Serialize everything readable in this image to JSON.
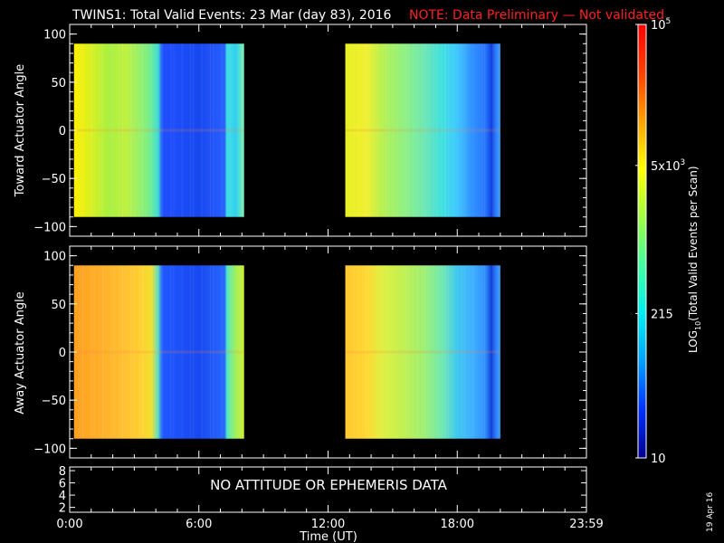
{
  "header": {
    "title": "TWINS1: Total Valid Events: 23 Mar (day  83), 2016",
    "note": "NOTE: Data Preliminary — Not validated",
    "note_color": "#ff2020"
  },
  "stamp": "19 Apr 16",
  "chart_data": [
    {
      "type": "heatmap",
      "ylabel": "Toward Actuator Angle",
      "ylim": [
        -110,
        110
      ],
      "yticks": [
        "100",
        "50",
        "0",
        "−50",
        "−100"
      ],
      "ytick_values": [
        100,
        50,
        0,
        -50,
        -100
      ],
      "ylim_data": [
        -90,
        90
      ],
      "xlim": [
        0,
        24
      ],
      "blocks": [
        {
          "x_start": 0.2,
          "x_end": 8.1,
          "stops": [
            [
              0.2,
              "#fff000"
            ],
            [
              1.0,
              "#d8f020"
            ],
            [
              1.8,
              "#a8f040"
            ],
            [
              2.6,
              "#c0f040"
            ],
            [
              3.6,
              "#80f080"
            ],
            [
              4.1,
              "#40e0d0"
            ],
            [
              4.3,
              "#2050ff"
            ],
            [
              6.0,
              "#1848f0"
            ],
            [
              7.2,
              "#2860ff"
            ],
            [
              7.3,
              "#40e0e0"
            ],
            [
              7.7,
              "#30d0f0"
            ],
            [
              8.1,
              "#80f0b0"
            ]
          ]
        },
        {
          "x_start": 12.8,
          "x_end": 20.0,
          "stops": [
            [
              12.8,
              "#e8f020"
            ],
            [
              13.8,
              "#f0f030"
            ],
            [
              14.5,
              "#b8f050"
            ],
            [
              15.5,
              "#90f080"
            ],
            [
              16.4,
              "#70e8b0"
            ],
            [
              17.3,
              "#40e0e0"
            ],
            [
              18.0,
              "#40c8ff"
            ],
            [
              18.7,
              "#3090ff"
            ],
            [
              19.3,
              "#2878ff"
            ],
            [
              19.6,
              "#1040e0"
            ],
            [
              19.8,
              "#3080ff"
            ],
            [
              20.0,
              "#40a0ff"
            ]
          ]
        }
      ]
    },
    {
      "type": "heatmap",
      "ylabel": "Away Actuator Angle",
      "ylim": [
        -110,
        110
      ],
      "yticks": [
        "100",
        "50",
        "0",
        "−50",
        "−100"
      ],
      "ytick_values": [
        100,
        50,
        0,
        -50,
        -100
      ],
      "ylim_data": [
        -90,
        90
      ],
      "xlim": [
        0,
        24
      ],
      "blocks": [
        {
          "x_start": 0.2,
          "x_end": 8.1,
          "stops": [
            [
              0.2,
              "#ffa020"
            ],
            [
              1.5,
              "#ffb028"
            ],
            [
              2.5,
              "#ffc030"
            ],
            [
              3.3,
              "#ffd030"
            ],
            [
              3.8,
              "#f0e030"
            ],
            [
              4.1,
              "#60e0c0"
            ],
            [
              4.3,
              "#2058ff"
            ],
            [
              6.0,
              "#1848f0"
            ],
            [
              7.2,
              "#2868ff"
            ],
            [
              7.3,
              "#50e8c0"
            ],
            [
              7.7,
              "#a0f060"
            ],
            [
              8.1,
              "#d0f030"
            ]
          ]
        },
        {
          "x_start": 12.8,
          "x_end": 20.0,
          "stops": [
            [
              12.8,
              "#ffc830"
            ],
            [
              13.8,
              "#ffd830"
            ],
            [
              14.5,
              "#e0f040"
            ],
            [
              15.5,
              "#c0f050"
            ],
            [
              16.4,
              "#a0f070"
            ],
            [
              17.3,
              "#70e8b0"
            ],
            [
              18.0,
              "#40c8f0"
            ],
            [
              18.7,
              "#40b0ff"
            ],
            [
              19.3,
              "#3090ff"
            ],
            [
              19.6,
              "#1040d8"
            ],
            [
              19.8,
              "#3080ff"
            ],
            [
              20.0,
              "#40a0ff"
            ]
          ]
        }
      ]
    },
    {
      "type": "text-panel",
      "message": "NO ATTITUDE OR EPHEMERIS DATA",
      "yticks": [
        "8",
        "6",
        "4",
        "2"
      ],
      "ytick_values": [
        8,
        6,
        4,
        2
      ],
      "ylim": [
        1.2,
        8.6
      ]
    }
  ],
  "time_axis": {
    "xlabel": "Time (UT)",
    "xlim": [
      0,
      24
    ],
    "ticks": [
      {
        "value": 0,
        "label": "0:00"
      },
      {
        "value": 6,
        "label": "6:00"
      },
      {
        "value": 12,
        "label": "12:00"
      },
      {
        "value": 18,
        "label": "18:00"
      },
      {
        "value": 24,
        "label": "23:59"
      }
    ]
  },
  "colorbar": {
    "label": "LOG10(Total Valid Events per Scan)",
    "label_main": "LOG",
    "label_sub": "10",
    "label_rest": "(Total Valid Events per Scan)",
    "scale": "log",
    "range": [
      10,
      100000
    ],
    "ticks": [
      {
        "value": 100000,
        "base": "10",
        "exp": "5"
      },
      {
        "value": 5000,
        "base": "5x10",
        "exp": "3"
      },
      {
        "value": 215,
        "base": "215",
        "exp": ""
      },
      {
        "value": 10,
        "base": "10",
        "exp": ""
      }
    ],
    "colors": [
      "#000090",
      "#0030ff",
      "#00a0ff",
      "#00f0f0",
      "#40ffa0",
      "#a0ff40",
      "#ffff00",
      "#ffa000",
      "#ff4000",
      "#ff0000"
    ]
  }
}
